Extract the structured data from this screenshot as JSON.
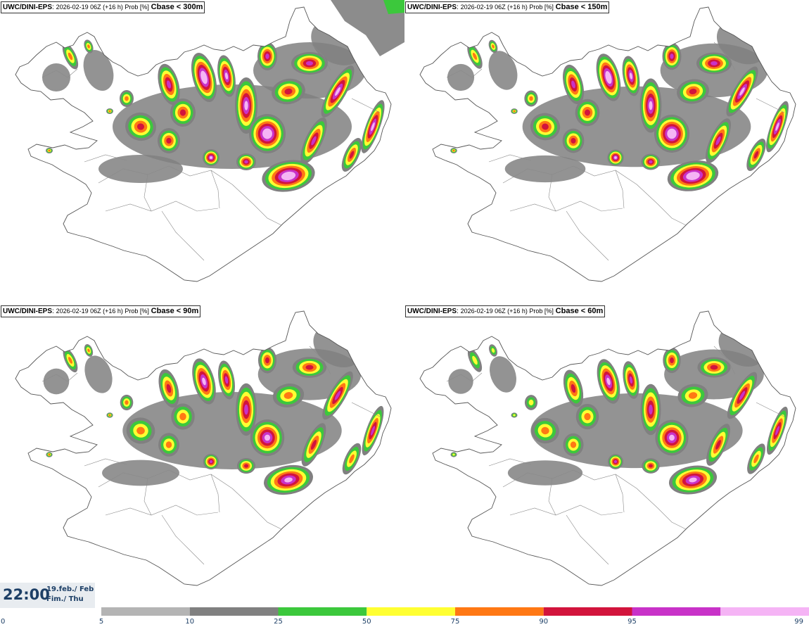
{
  "panels": [
    {
      "model": "UWC/DINI-EPS",
      "run": "2026-02-19 06Z (+16 h) Prob [%]",
      "variable": "Cbase < 300m",
      "intensity": 1.0
    },
    {
      "model": "UWC/DINI-EPS",
      "run": "2026-02-19 06Z (+16 h) Prob [%]",
      "variable": "Cbase < 150m",
      "intensity": 0.85
    },
    {
      "model": "UWC/DINI-EPS",
      "run": "2026-02-19 06Z (+16 h) Prob [%]",
      "variable": "Cbase < 90m",
      "intensity": 0.72
    },
    {
      "model": "UWC/DINI-EPS",
      "run": "2026-02-19 06Z (+16 h) Prob [%]",
      "variable": "Cbase < 60m",
      "intensity": 0.62
    }
  ],
  "valid_time": {
    "time": "22:00",
    "date": "19.feb./ Feb",
    "day": "Fim./ Thu"
  },
  "legend": {
    "ticks": [
      "0",
      "5",
      "10",
      "25",
      "50",
      "75",
      "90",
      "95",
      "99"
    ],
    "bins": [
      {
        "from": "5",
        "to": "10",
        "color": "#b4b4b4"
      },
      {
        "from": "10",
        "to": "25",
        "color": "#808080"
      },
      {
        "from": "25",
        "to": "50",
        "color": "#3cc83c"
      },
      {
        "from": "50",
        "to": "75",
        "color": "#ffff32"
      },
      {
        "from": "75",
        "to": "90",
        "color": "#ff7814"
      },
      {
        "from": "90",
        "to": "95",
        "color": "#d2143c"
      },
      {
        "from": "95",
        "to": "99",
        "color": "#c832c8"
      },
      {
        "from": "99",
        "to": "",
        "color": "#f5b4f5"
      }
    ]
  },
  "colors": {
    "outline": "#555555",
    "text": "#1d3f66"
  }
}
